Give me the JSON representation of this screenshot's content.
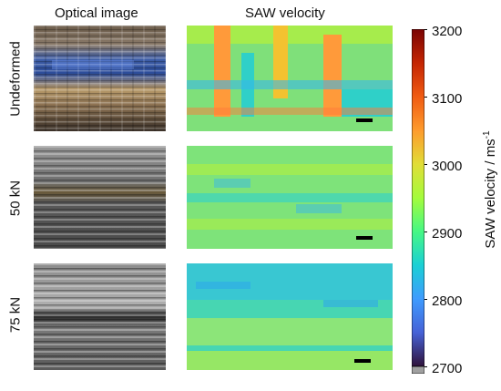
{
  "columns": {
    "optical": "Optical image",
    "saw": "SAW velocity"
  },
  "rows": [
    {
      "label": "Undeformed"
    },
    {
      "label": "50 kN"
    },
    {
      "label": "75 kN"
    }
  ],
  "colorbar": {
    "title_main": "SAW velocity / ms",
    "title_sup": "-1",
    "ticks": [
      "3200",
      "3100",
      "3000",
      "2900",
      "2800",
      "2700"
    ],
    "min": 2700,
    "max": 3200,
    "colormap": "turbo-like",
    "underflow_color": "#a0a0a0"
  }
}
